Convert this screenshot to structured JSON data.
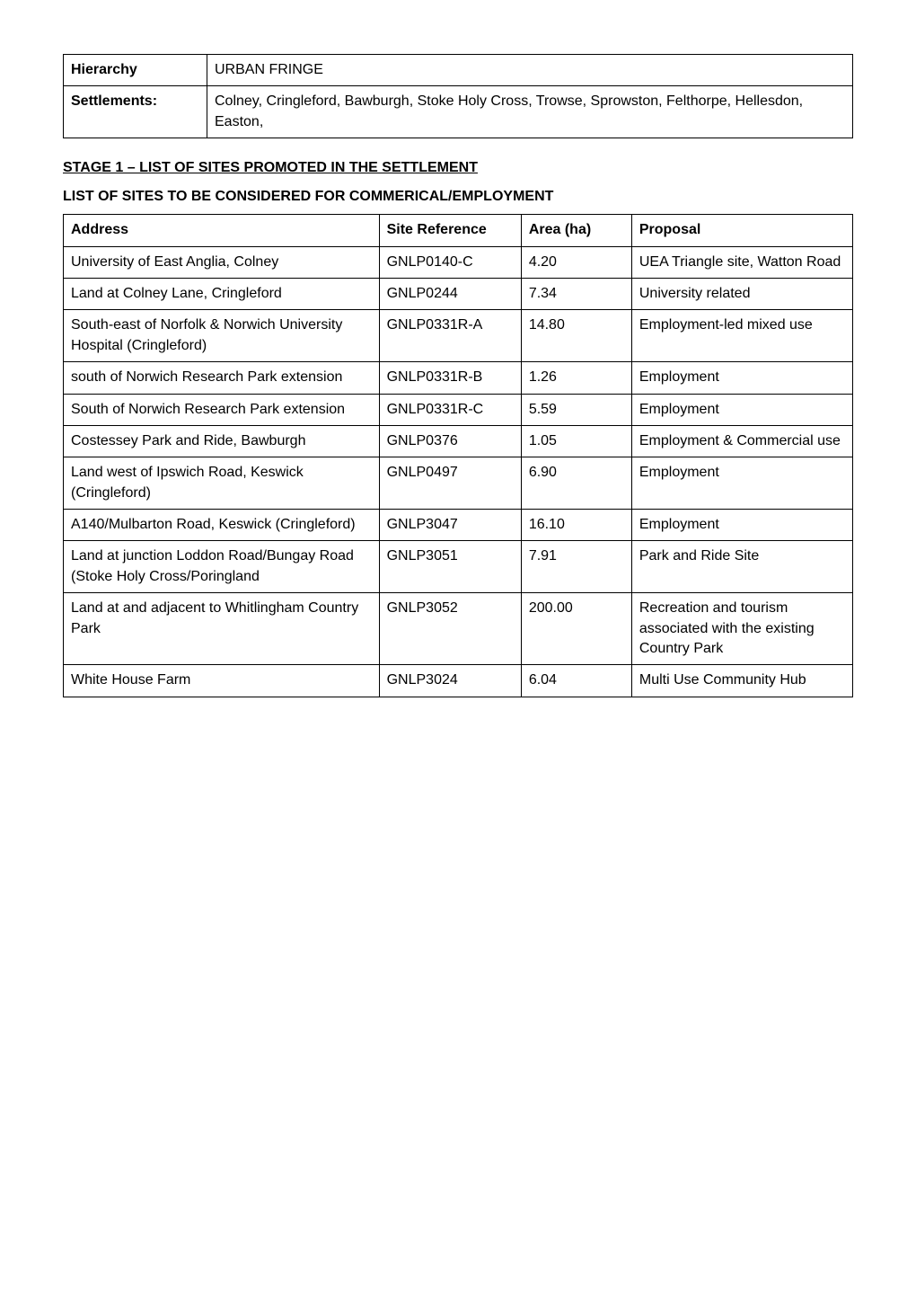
{
  "header_table": {
    "rows": [
      {
        "label": "Hierarchy",
        "value": "URBAN FRINGE"
      },
      {
        "label": "Settlements:",
        "value": "Colney, Cringleford, Bawburgh, Stoke Holy Cross, Trowse, Sprowston, Felthorpe, Hellesdon, Easton,"
      }
    ]
  },
  "section_heading": "STAGE 1 – LIST OF SITES PROMOTED IN THE SETTLEMENT",
  "sub_heading": "LIST OF SITES TO BE CONSIDERED FOR COMMERICAL/EMPLOYMENT",
  "data_table": {
    "columns": [
      "Address",
      "Site Reference",
      "Area (ha)",
      "Proposal"
    ],
    "rows": [
      {
        "address": "University of East Anglia, Colney",
        "site_ref": "GNLP0140-C",
        "area": "4.20",
        "proposal": "UEA Triangle site, Watton Road"
      },
      {
        "address": "Land at Colney Lane, Cringleford",
        "site_ref": "GNLP0244",
        "area": "7.34",
        "proposal": "University related"
      },
      {
        "address": "South-east of Norfolk & Norwich University Hospital (Cringleford)",
        "site_ref": "GNLP0331R-A",
        "area": "14.80",
        "proposal": "Employment-led mixed use"
      },
      {
        "address": "south of Norwich Research Park extension",
        "site_ref": "GNLP0331R-B",
        "area": "1.26",
        "proposal": "Employment"
      },
      {
        "address": "South of Norwich Research Park extension",
        "site_ref": "GNLP0331R-C",
        "area": "5.59",
        "proposal": "Employment"
      },
      {
        "address": "Costessey Park and Ride, Bawburgh",
        "site_ref": "GNLP0376",
        "area": "1.05",
        "proposal": "Employment & Commercial use"
      },
      {
        "address": "Land west of Ipswich Road, Keswick (Cringleford)",
        "site_ref": "GNLP0497",
        "area": "6.90",
        "proposal": "Employment"
      },
      {
        "address": "A140/Mulbarton Road, Keswick (Cringleford)",
        "site_ref": "GNLP3047",
        "area": "16.10",
        "proposal": "Employment"
      },
      {
        "address": "Land at junction Loddon Road/Bungay Road (Stoke Holy Cross/Poringland",
        "site_ref": "GNLP3051",
        "area": "7.91",
        "proposal": "Park and Ride Site"
      },
      {
        "address": "Land at and adjacent to Whitlingham Country Park",
        "site_ref": "GNLP3052",
        "area": "200.00",
        "proposal": "Recreation and tourism associated with the existing Country Park"
      },
      {
        "address": "White House Farm",
        "site_ref": "GNLP3024",
        "area": "6.04",
        "proposal": "Multi Use Community Hub"
      }
    ]
  },
  "styles": {
    "body_bg": "#ffffff",
    "text_color": "#000000",
    "border_color": "#000000",
    "font_family": "Arial, sans-serif",
    "base_font_size": 16,
    "heading_weight": "bold"
  }
}
